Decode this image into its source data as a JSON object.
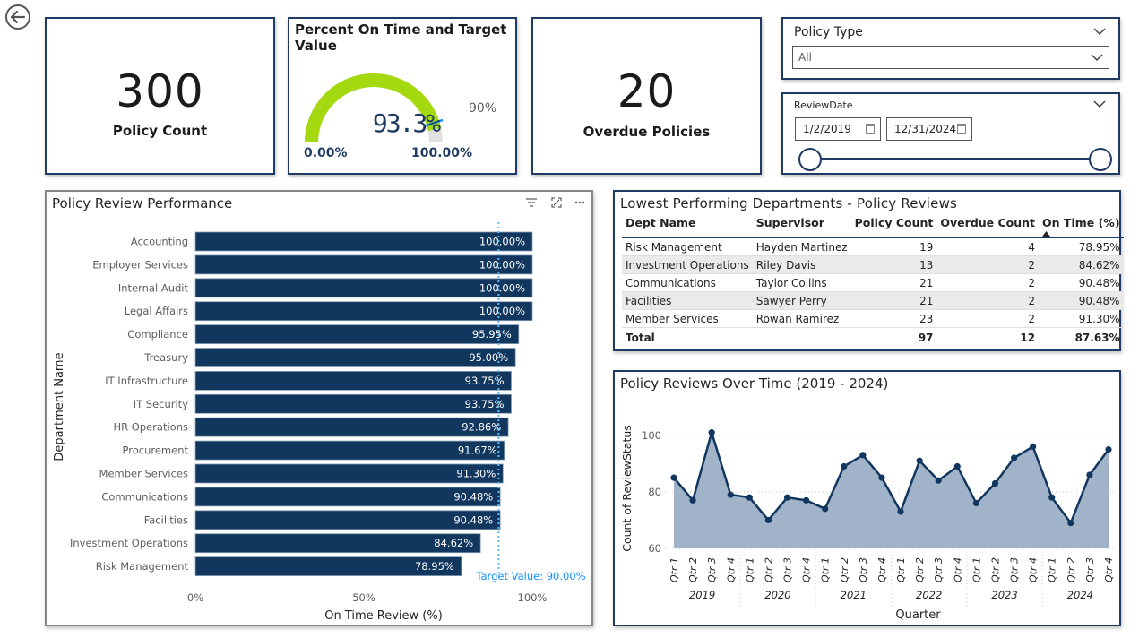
{
  "kpis": {
    "policy_count": {
      "value": "300",
      "label": "Policy Count"
    },
    "overdue": {
      "value": "20",
      "label": "Overdue Policies"
    }
  },
  "gauge": {
    "title": "Percent On Time and Target Value",
    "value_label": "93.3%",
    "value": 93.3,
    "target_label": "90%",
    "target": 90,
    "min_label": "0.00%",
    "max_label": "100.00%",
    "fill_color": "#a4d80f",
    "track_color": "#e1e1e1",
    "target_color": "#118dff"
  },
  "slicers": {
    "policy_type": {
      "title": "Policy Type",
      "selected": "All"
    },
    "review_date": {
      "title": "ReviewDate",
      "start": "1/2/2019",
      "end": "12/31/2024"
    }
  },
  "bar_panel": {
    "title": "Policy Review Performance",
    "icons": [
      "filter-icon",
      "focus-mode-icon",
      "more-options-icon"
    ]
  },
  "table_panel": {
    "title": "Lowest Performing Departments - Policy Reviews",
    "columns": [
      "Dept Name",
      "Supervisor",
      "Policy Count",
      "Overdue Count",
      "On Time (%)"
    ],
    "rows": [
      [
        "Risk Management",
        "Hayden Martinez",
        "19",
        "4",
        "78.95%"
      ],
      [
        "Investment Operations",
        "Riley Davis",
        "13",
        "2",
        "84.62%"
      ],
      [
        "Communications",
        "Taylor Collins",
        "21",
        "2",
        "90.48%"
      ],
      [
        "Facilities",
        "Sawyer Perry",
        "21",
        "2",
        "90.48%"
      ],
      [
        "Member Services",
        "Rowan Ramirez",
        "23",
        "2",
        "91.30%"
      ]
    ],
    "total": [
      "Total",
      "",
      "97",
      "12",
      "87.63%"
    ],
    "sort_column": "On Time (%)"
  },
  "line_panel": {
    "title": "Policy Reviews Over Time (2019 - 2024)"
  },
  "chart_data": [
    {
      "type": "bar",
      "orientation": "horizontal",
      "categories": [
        "Accounting",
        "Employer Services",
        "Internal Audit",
        "Legal Affairs",
        "Compliance",
        "Treasury",
        "IT Infrastructure",
        "IT Security",
        "HR Operations",
        "Procurement",
        "Member Services",
        "Communications",
        "Facilities",
        "Investment Operations",
        "Risk Management"
      ],
      "values": [
        100.0,
        100.0,
        100.0,
        100.0,
        95.95,
        95.0,
        93.75,
        93.75,
        92.86,
        91.67,
        91.3,
        90.48,
        90.48,
        84.62,
        78.95
      ],
      "data_labels": [
        "100.00%",
        "100.00%",
        "100.00%",
        "100.00%",
        "95.95%",
        "95.00%",
        "93.75%",
        "93.75%",
        "92.86%",
        "91.67%",
        "91.30%",
        "90.48%",
        "90.48%",
        "84.62%",
        "78.95%"
      ],
      "xlabel": "On Time Review (%)",
      "ylabel": "Department Name",
      "xlim": [
        0,
        100
      ],
      "x_ticks": [
        "0%",
        "50%",
        "100%"
      ],
      "target_line": {
        "value": 90,
        "label": "Target Value: 90.00%"
      },
      "bar_color": "#12375f",
      "target_color": "#61b7f0"
    },
    {
      "type": "area",
      "x": [
        "Qtr 1",
        "Qtr 2",
        "Qtr 3",
        "Qtr 4",
        "Qtr 1",
        "Qtr 2",
        "Qtr 3",
        "Qtr 4",
        "Qtr 1",
        "Qtr 2",
        "Qtr 3",
        "Qtr 4",
        "Qtr 1",
        "Qtr 2",
        "Qtr 3",
        "Qtr 4",
        "Qtr 1",
        "Qtr 2",
        "Qtr 3",
        "Qtr 4",
        "Qtr 1",
        "Qtr 2",
        "Qtr 3",
        "Qtr 4"
      ],
      "years": [
        "2019",
        "2020",
        "2021",
        "2022",
        "2023",
        "2024"
      ],
      "values": [
        85,
        77,
        101,
        79,
        78,
        70,
        78,
        77,
        74,
        89,
        93,
        85,
        73,
        91,
        84,
        89,
        76,
        83,
        92,
        96,
        78,
        69,
        86,
        95
      ],
      "xlabel": "Quarter",
      "ylabel": "Count of ReviewStatus",
      "ylim": [
        60,
        105
      ],
      "y_ticks": [
        60,
        80,
        100
      ],
      "line_color": "#12375f",
      "fill_color": "#a0b3c9"
    }
  ]
}
